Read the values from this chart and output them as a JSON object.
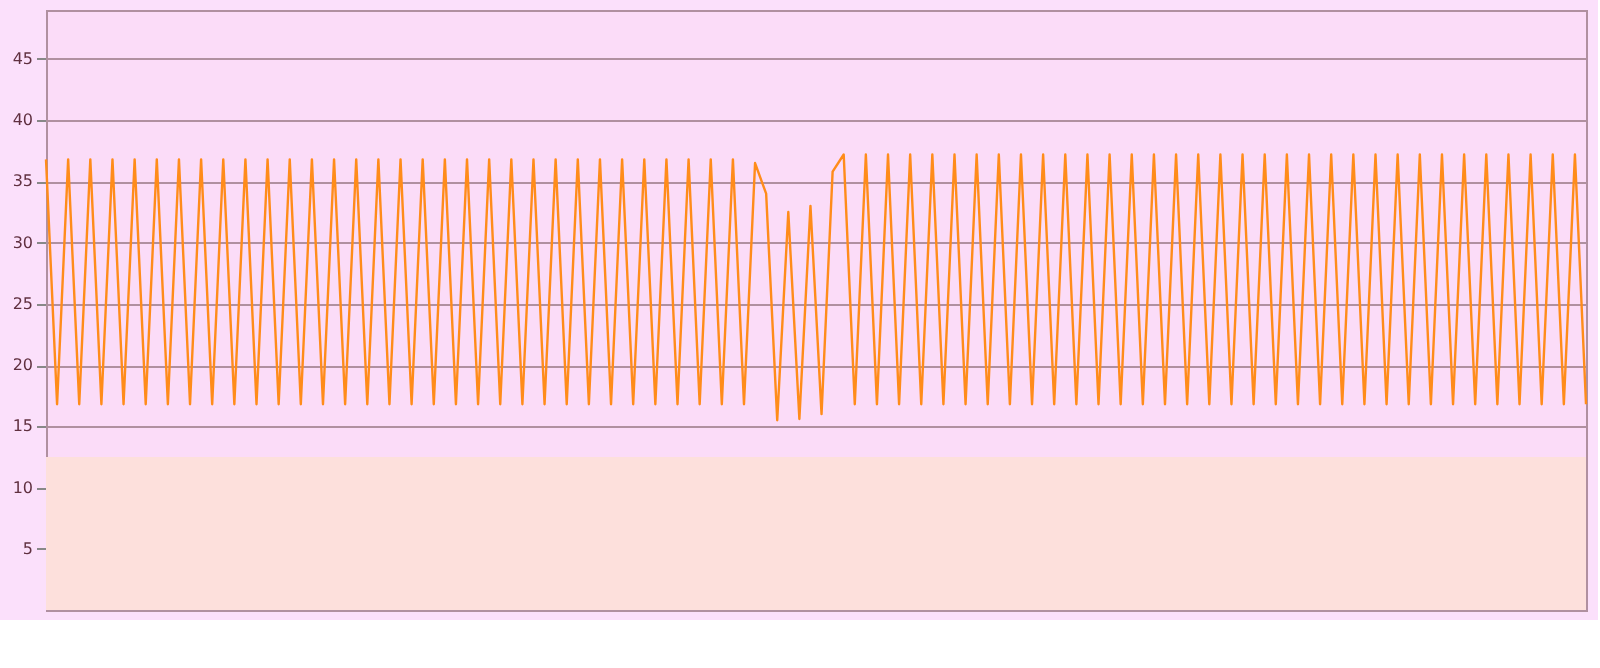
{
  "chart_data": {
    "type": "line",
    "tick_labels": "y",
    "grid": "y",
    "marker": "none",
    "line_style": "solid",
    "ylim": [
      0,
      49
    ],
    "yticks": [
      5,
      10,
      15,
      20,
      25,
      30,
      35,
      40,
      45
    ],
    "bands": [
      {
        "axis": "y",
        "from": 0,
        "to": 12.5,
        "color": "#fde0dc"
      }
    ],
    "categories": [
      null,
      null,
      null,
      null,
      null,
      null,
      null,
      null,
      null,
      null,
      null,
      null,
      null,
      null,
      null,
      null,
      null,
      null,
      null,
      null,
      null,
      null,
      null,
      null,
      null,
      null,
      null,
      null,
      null,
      null,
      null,
      null,
      null,
      null,
      null,
      null,
      null,
      null,
      null,
      null,
      null,
      null,
      null,
      null,
      null,
      null,
      null,
      null,
      null,
      null,
      null,
      null,
      null,
      null,
      null,
      null,
      null,
      null,
      null,
      null,
      null,
      null,
      null,
      null,
      null,
      null,
      null,
      null,
      null,
      null,
      null,
      null,
      null,
      null,
      null,
      null,
      null,
      null,
      null,
      null,
      null,
      null,
      null,
      null,
      null,
      null,
      null,
      null,
      null,
      null,
      null,
      null,
      null,
      null,
      null,
      null,
      null,
      null,
      null,
      null,
      null,
      null,
      null,
      null,
      null,
      null,
      null,
      null,
      null,
      null,
      null,
      null,
      null,
      null,
      null,
      null,
      null,
      null,
      null,
      null,
      null,
      null,
      null,
      null,
      null,
      null,
      null,
      null,
      null,
      null,
      null,
      null,
      null,
      null,
      null,
      null,
      null,
      null,
      null,
      null
    ],
    "series": [
      {
        "color": "#ff8c1a",
        "values": [
          36.8,
          16.8,
          36.8,
          16.8,
          36.8,
          16.8,
          36.8,
          16.8,
          36.8,
          16.8,
          36.8,
          16.8,
          36.8,
          16.8,
          36.8,
          16.8,
          36.8,
          16.8,
          36.8,
          16.8,
          36.8,
          16.8,
          36.8,
          16.8,
          36.8,
          16.8,
          36.8,
          16.8,
          36.8,
          16.8,
          36.8,
          16.8,
          36.8,
          16.8,
          36.8,
          16.8,
          36.8,
          16.8,
          36.8,
          16.8,
          36.8,
          16.8,
          36.8,
          16.8,
          36.8,
          16.8,
          36.8,
          16.8,
          36.8,
          16.8,
          36.8,
          16.8,
          36.8,
          16.8,
          36.8,
          16.8,
          36.8,
          16.8,
          36.8,
          16.8,
          36.8,
          16.8,
          36.8,
          16.8,
          36.5,
          34,
          15.5,
          32.5,
          15.6,
          33,
          16,
          35.8,
          37.2,
          16.8,
          37.2,
          16.8,
          37.2,
          16.8,
          37.2,
          16.8,
          37.2,
          16.8,
          37.2,
          16.8,
          37.2,
          16.8,
          37.2,
          16.8,
          37.2,
          16.8,
          37.2,
          16.8,
          37.2,
          16.8,
          37.2,
          16.8,
          37.2,
          16.8,
          37.2,
          16.8,
          37.2,
          16.8,
          37.2,
          16.8,
          37.2,
          16.8,
          37.2,
          16.8,
          37.2,
          16.8,
          37.2,
          16.8,
          37.2,
          16.8,
          37.2,
          16.8,
          37.2,
          16.8,
          37.2,
          16.8,
          37.2,
          16.8,
          37.2,
          16.8,
          37.2,
          16.8,
          37.2,
          16.8,
          37.2,
          16.8,
          37.2,
          16.8,
          37.2,
          16.8,
          37.2,
          16.8,
          37.2,
          16.8,
          37.2,
          16.8
        ]
      }
    ]
  }
}
